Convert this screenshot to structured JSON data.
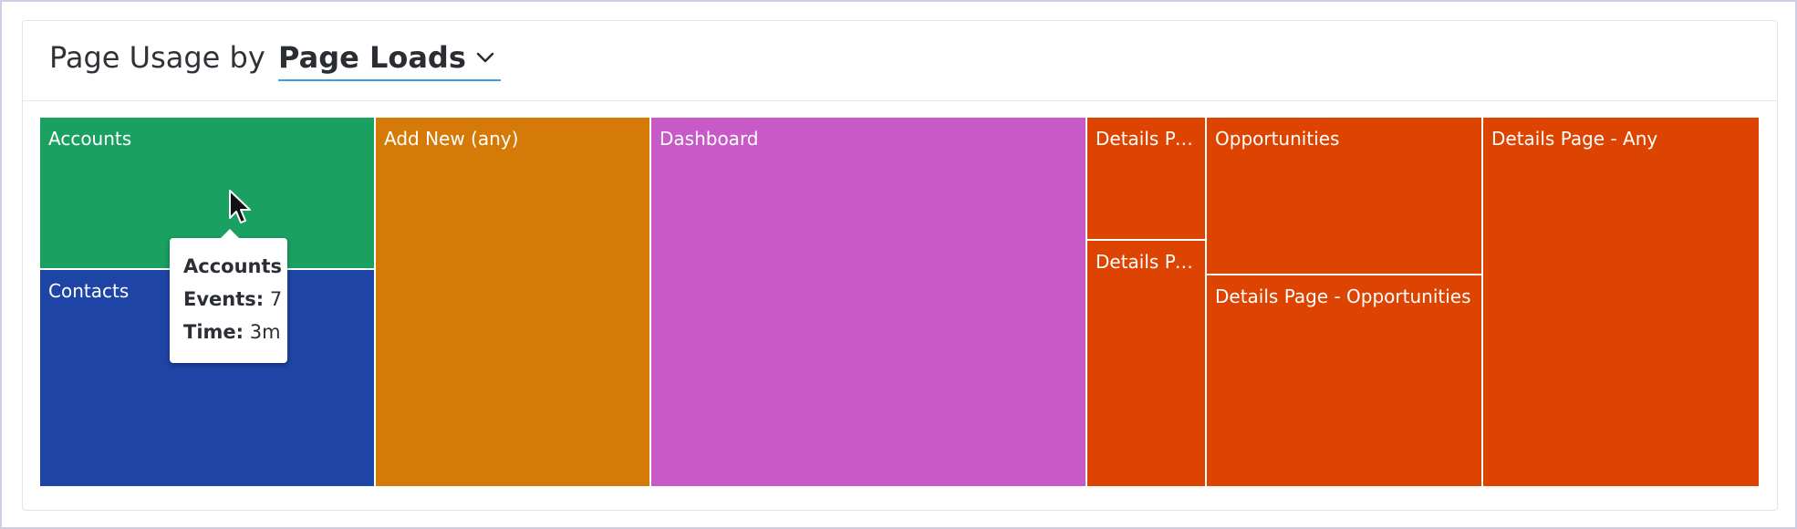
{
  "header": {
    "title_prefix": "Page Usage by",
    "metric_selected": "Page Loads"
  },
  "icons": {
    "metric_dropdown": "chevron-down-icon",
    "pointer": "mouse-pointer-icon"
  },
  "colors": {
    "green": "#1aa162",
    "blue": "#1e44a6",
    "orange": "#d57a06",
    "magenta": "#c75ac6",
    "red_orange": "#dd4401"
  },
  "chart_data": {
    "type": "treemap",
    "nodes": [
      {
        "name": "Accounts",
        "color": "#1aa162"
      },
      {
        "name": "Contacts",
        "color": "#1e44a6"
      },
      {
        "name": "Add New (any)",
        "color": "#d57a06"
      },
      {
        "name": "Dashboard",
        "color": "#c75ac6"
      },
      {
        "name": "Details Pa...",
        "color": "#dd4401"
      },
      {
        "name": "Details Pa...",
        "color": "#dd4401"
      },
      {
        "name": "Opportunities",
        "color": "#dd4401"
      },
      {
        "name": "Details Page - Opportunities",
        "color": "#dd4401"
      },
      {
        "name": "Details Page - Any",
        "color": "#dd4401"
      }
    ]
  },
  "tooltip": {
    "title": "Accounts",
    "events_label": "Events:",
    "events_value": "7",
    "time_label": "Time:",
    "time_value": "3m"
  }
}
